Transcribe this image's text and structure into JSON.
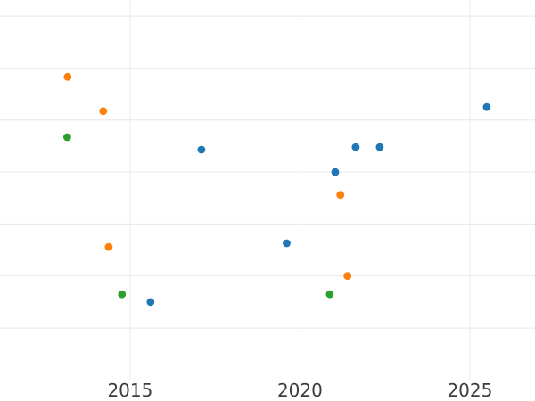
{
  "figure": {
    "background": "#ffffff",
    "gridline_color": "#e8e8e8",
    "tick_label_color": "#3d3d3d"
  },
  "chart_data": {
    "type": "scatter",
    "title": "",
    "xlabel": "",
    "ylabel": "",
    "grid": true,
    "legend_visible": false,
    "x_axis": {
      "ticks": [
        2015,
        2020,
        2025
      ],
      "tick_labels": [
        "2015",
        "2020",
        "2025"
      ],
      "range": [
        2011.17,
        2026.92
      ]
    },
    "y_axis": {
      "tick_labels": [],
      "unit": "unlabeled-gridline-intervals",
      "gridlines_at": [
        1,
        2,
        3,
        4,
        5,
        6,
        7
      ],
      "range": [
        0,
        7.31
      ]
    },
    "series": [
      {
        "name": "blue",
        "color": "#1f77b4",
        "points": [
          [
            2017.1,
            4.43
          ],
          [
            2025.5,
            5.25
          ],
          [
            2021.64,
            4.48
          ],
          [
            2022.35,
            4.48
          ],
          [
            2021.04,
            4.0
          ],
          [
            2015.6,
            1.5
          ],
          [
            2019.61,
            2.63
          ]
        ]
      },
      {
        "name": "orange",
        "color": "#ff7f0e",
        "points": [
          [
            2013.16,
            5.83
          ],
          [
            2014.21,
            5.17
          ],
          [
            2021.19,
            3.56
          ],
          [
            2014.37,
            2.56
          ],
          [
            2021.4,
            2.0
          ]
        ]
      },
      {
        "name": "green",
        "color": "#2ca02c",
        "points": [
          [
            2013.15,
            4.67
          ],
          [
            2014.76,
            1.65
          ],
          [
            2020.88,
            1.65
          ]
        ]
      }
    ]
  }
}
